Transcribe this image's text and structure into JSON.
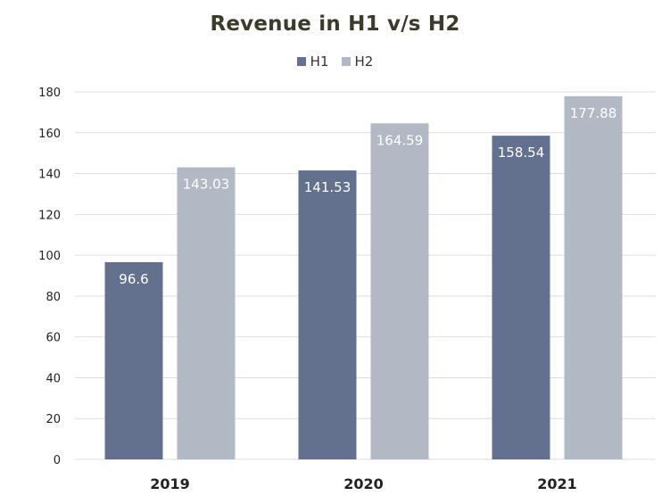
{
  "chart_data": {
    "type": "bar",
    "title": "Revenue in H1 v/s H2",
    "categories": [
      "2019",
      "2020",
      "2021"
    ],
    "series": [
      {
        "name": "H1",
        "color": "#63718f",
        "values": [
          96.6,
          141.53,
          158.54
        ]
      },
      {
        "name": "H2",
        "color": "#b3b8c5",
        "values": [
          143.03,
          164.59,
          177.88
        ]
      }
    ],
    "ylim": [
      0,
      180
    ],
    "yticks": [
      0,
      20,
      40,
      60,
      80,
      100,
      120,
      140,
      160,
      180
    ],
    "grid": true,
    "legend_position": "top",
    "data_labels": true,
    "gridline_color": "#d9dee6",
    "label_color": "#ffffff",
    "axis_text_color": "#222222"
  }
}
